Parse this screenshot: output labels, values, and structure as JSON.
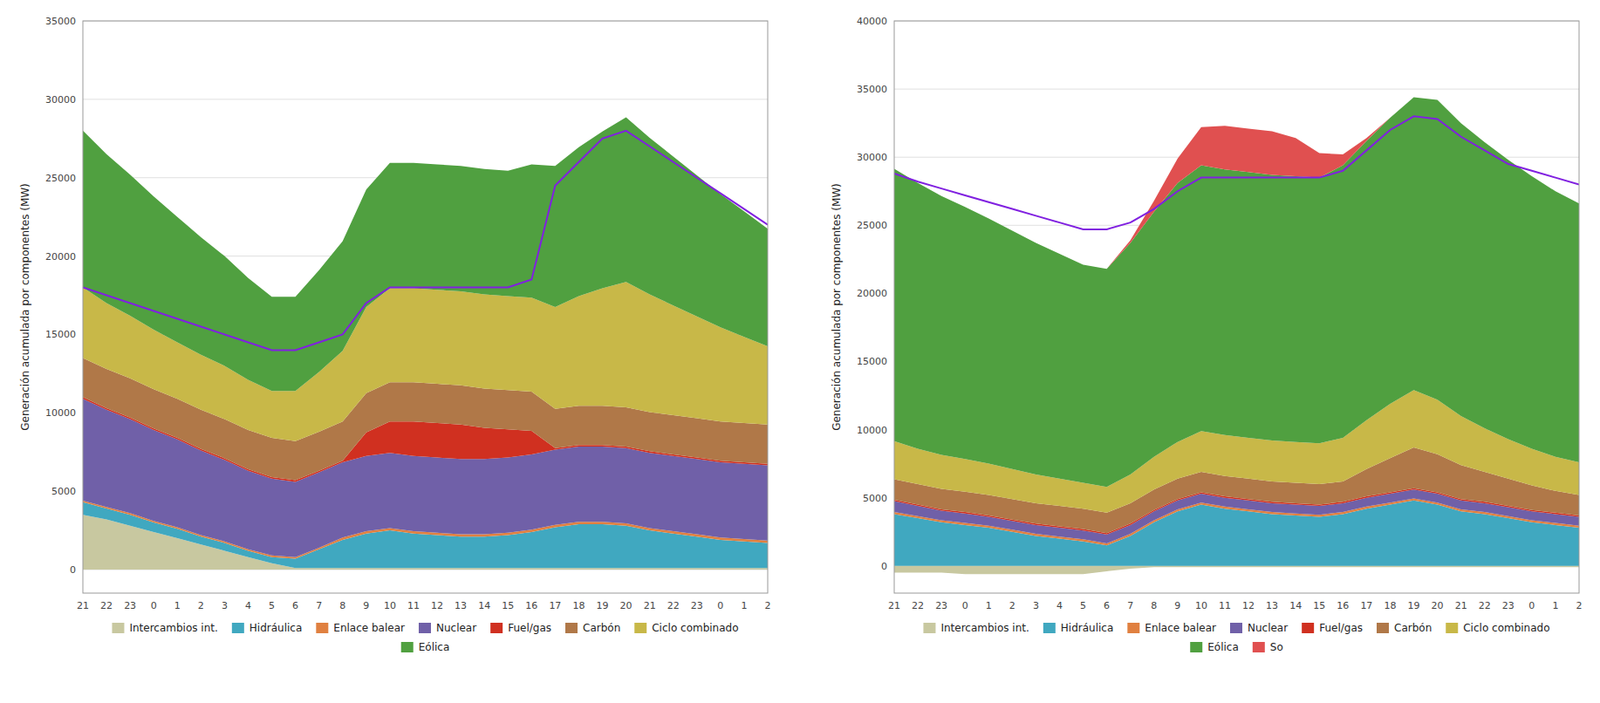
{
  "chart_data": [
    {
      "type": "area",
      "stacked": true,
      "ylabel": "Generación acumulada por componentes (MW)",
      "categories": [
        "21",
        "22",
        "23",
        "0",
        "1",
        "2",
        "3",
        "4",
        "5",
        "6",
        "7",
        "8",
        "9",
        "10",
        "11",
        "12",
        "13",
        "14",
        "15",
        "16",
        "17",
        "18",
        "19",
        "20",
        "21",
        "22",
        "23",
        "0",
        "1",
        "2"
      ],
      "ylim": [
        -1500,
        35000
      ],
      "yticks": [
        0,
        5000,
        10000,
        15000,
        20000,
        25000,
        30000,
        35000
      ],
      "grid": true,
      "legend": "bottom",
      "series": [
        {
          "name": "Intercambios int.",
          "color": "#c8c8a0",
          "values": [
            3500,
            3200,
            2800,
            2400,
            2000,
            1600,
            1200,
            800,
            400,
            100,
            100,
            100,
            100,
            100,
            100,
            100,
            100,
            100,
            100,
            100,
            100,
            100,
            100,
            100,
            100,
            100,
            100,
            100,
            100,
            100
          ]
        },
        {
          "name": "Hidráulica",
          "color": "#40a8c0",
          "values": [
            800,
            700,
            700,
            600,
            600,
            500,
            500,
            400,
            400,
            600,
            1200,
            1800,
            2200,
            2400,
            2200,
            2100,
            2000,
            2000,
            2100,
            2300,
            2600,
            2800,
            2800,
            2700,
            2400,
            2200,
            2000,
            1800,
            1700,
            1600
          ]
        },
        {
          "name": "Enlace balear",
          "color": "#e08040",
          "values": [
            100,
            100,
            100,
            100,
            100,
            100,
            100,
            100,
            100,
            100,
            100,
            150,
            150,
            150,
            150,
            150,
            150,
            150,
            150,
            150,
            150,
            150,
            150,
            150,
            150,
            150,
            150,
            150,
            150,
            150
          ]
        },
        {
          "name": "Nuclear",
          "color": "#7060a8",
          "values": [
            6500,
            6200,
            6000,
            5800,
            5600,
            5400,
            5200,
            5000,
            4900,
            4800,
            4800,
            4800,
            4800,
            4800,
            4800,
            4800,
            4800,
            4800,
            4800,
            4800,
            4800,
            4800,
            4800,
            4800,
            4800,
            4800,
            4800,
            4800,
            4800,
            4800
          ]
        },
        {
          "name": "Fuel/gas",
          "color": "#d03020",
          "values": [
            100,
            100,
            100,
            100,
            100,
            100,
            100,
            100,
            100,
            100,
            100,
            100,
            1500,
            2000,
            2200,
            2200,
            2200,
            2000,
            1800,
            1500,
            100,
            100,
            100,
            100,
            100,
            100,
            100,
            100,
            100,
            100
          ]
        },
        {
          "name": "Carbón",
          "color": "#b07848",
          "values": [
            2500,
            2500,
            2500,
            2500,
            2500,
            2500,
            2500,
            2500,
            2500,
            2500,
            2500,
            2500,
            2500,
            2500,
            2500,
            2500,
            2500,
            2500,
            2500,
            2500,
            2500,
            2500,
            2500,
            2500,
            2500,
            2500,
            2500,
            2500,
            2500,
            2500
          ]
        },
        {
          "name": "Ciclo combinado",
          "color": "#c8b848",
          "values": [
            4500,
            4200,
            4000,
            3800,
            3600,
            3500,
            3400,
            3200,
            3000,
            3200,
            3800,
            4500,
            5500,
            6000,
            6000,
            6000,
            6000,
            6000,
            6000,
            6000,
            6500,
            7000,
            7500,
            8000,
            7500,
            7000,
            6500,
            6000,
            5500,
            5000
          ]
        },
        {
          "name": "Eólica",
          "color": "#50a040",
          "values": [
            10000,
            9500,
            9000,
            8500,
            8000,
            7500,
            7000,
            6500,
            6000,
            6000,
            6500,
            7000,
            7500,
            8000,
            8000,
            8000,
            8000,
            8000,
            8000,
            8500,
            9000,
            9500,
            10000,
            10500,
            10000,
            9500,
            9000,
            8500,
            8000,
            7500
          ]
        },
        {
          "type": "line",
          "color": "#8020e0",
          "values": [
            18000,
            17500,
            17000,
            16500,
            16000,
            15500,
            15000,
            14500,
            14000,
            14000,
            14500,
            15000,
            17000,
            18000,
            18000,
            18000,
            18000,
            18000,
            18000,
            18500,
            24500,
            26000,
            27500,
            28000,
            27000,
            26000,
            25000,
            24000,
            23000,
            22000
          ]
        }
      ]
    },
    {
      "type": "area",
      "stacked": true,
      "ylabel": "Generación acumulada por componentes (MW)",
      "categories": [
        "21",
        "22",
        "23",
        "0",
        "1",
        "2",
        "3",
        "4",
        "5",
        "6",
        "7",
        "8",
        "9",
        "10",
        "11",
        "12",
        "13",
        "14",
        "15",
        "16",
        "17",
        "18",
        "19",
        "20",
        "21",
        "22",
        "23",
        "0",
        "1",
        "2"
      ],
      "ylim": [
        -2000,
        40000
      ],
      "yticks": [
        0,
        5000,
        10000,
        15000,
        20000,
        25000,
        30000,
        35000,
        40000
      ],
      "grid": true,
      "legend": "bottom",
      "series": [
        {
          "name": "Intercambios int.",
          "color": "#c8c8a0",
          "values": [
            -500,
            -500,
            -500,
            -600,
            -600,
            -600,
            -600,
            -600,
            -600,
            -400,
            -200,
            -100,
            -100,
            -100,
            -100,
            -100,
            -100,
            -100,
            -100,
            -100,
            -100,
            -100,
            -100,
            -100,
            -100,
            -100,
            -100,
            -100,
            -100,
            -100
          ]
        },
        {
          "name": "Hidráulica",
          "color": "#40a8c0",
          "values": [
            3800,
            3500,
            3200,
            3000,
            2800,
            2500,
            2200,
            2000,
            1800,
            1500,
            2200,
            3200,
            4000,
            4500,
            4200,
            4000,
            3800,
            3700,
            3600,
            3800,
            4200,
            4500,
            4800,
            4500,
            4000,
            3800,
            3500,
            3200,
            3000,
            2800
          ]
        },
        {
          "name": "Enlace balear",
          "color": "#e08040",
          "values": [
            150,
            150,
            150,
            150,
            150,
            150,
            150,
            150,
            150,
            150,
            150,
            150,
            150,
            150,
            150,
            150,
            150,
            150,
            150,
            150,
            150,
            150,
            150,
            150,
            150,
            150,
            150,
            150,
            150,
            150
          ]
        },
        {
          "name": "Nuclear",
          "color": "#7060a8",
          "values": [
            800,
            750,
            700,
            700,
            650,
            650,
            650,
            650,
            650,
            650,
            650,
            650,
            650,
            650,
            650,
            650,
            650,
            650,
            650,
            650,
            650,
            650,
            650,
            650,
            650,
            650,
            650,
            650,
            650,
            650
          ]
        },
        {
          "name": "Fuel/gas",
          "color": "#d03020",
          "values": [
            100,
            100,
            100,
            100,
            100,
            100,
            100,
            100,
            100,
            100,
            100,
            100,
            100,
            100,
            100,
            100,
            100,
            100,
            100,
            100,
            100,
            100,
            100,
            100,
            100,
            100,
            100,
            100,
            100,
            100
          ]
        },
        {
          "name": "Carbón",
          "color": "#b07848",
          "values": [
            1500,
            1500,
            1500,
            1500,
            1500,
            1500,
            1500,
            1500,
            1500,
            1500,
            1500,
            1500,
            1500,
            1500,
            1500,
            1500,
            1500,
            1500,
            1500,
            1500,
            2000,
            2500,
            3000,
            2800,
            2500,
            2200,
            2000,
            1800,
            1600,
            1500
          ]
        },
        {
          "name": "Ciclo combinado",
          "color": "#c8b848",
          "values": [
            2800,
            2600,
            2500,
            2400,
            2300,
            2200,
            2100,
            2000,
            1900,
            1900,
            2100,
            2400,
            2700,
            3000,
            3000,
            3000,
            3000,
            3000,
            3000,
            3200,
            3600,
            4000,
            4200,
            4000,
            3600,
            3200,
            2900,
            2700,
            2500,
            2400
          ]
        },
        {
          "name": "Eólica",
          "color": "#50a040",
          "values": [
            20000,
            19500,
            19000,
            18500,
            18000,
            17500,
            17000,
            16500,
            16000,
            16000,
            17000,
            18000,
            19000,
            19500,
            19500,
            19500,
            19500,
            19500,
            19500,
            20000,
            20500,
            21000,
            21500,
            22000,
            21500,
            21000,
            20500,
            20000,
            19500,
            19000
          ]
        },
        {
          "name": "So",
          "color": "#e05050",
          "values": [
            0,
            0,
            0,
            0,
            0,
            0,
            0,
            0,
            0,
            0,
            200,
            800,
            1800,
            2800,
            3200,
            3200,
            3200,
            2800,
            1800,
            800,
            200,
            0,
            0,
            0,
            0,
            0,
            0,
            0,
            0,
            0
          ]
        },
        {
          "type": "line",
          "color": "#8020e0",
          "values": [
            28800,
            28200,
            27700,
            27200,
            26700,
            26200,
            25700,
            25200,
            24700,
            24700,
            25200,
            26200,
            27500,
            28500,
            28500,
            28500,
            28500,
            28500,
            28500,
            29000,
            30500,
            32000,
            33000,
            32800,
            31500,
            30500,
            29500,
            29000,
            28500,
            28000
          ]
        }
      ]
    }
  ]
}
